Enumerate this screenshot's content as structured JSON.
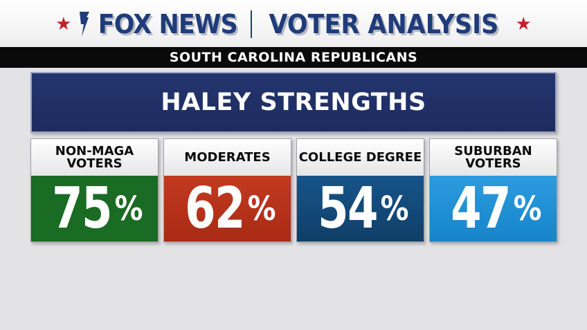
{
  "header": {
    "brand": "FOX NEWS",
    "title": "VOTER ANALYSIS",
    "star_icon": "star-icon",
    "logo_icon": "fox-torch-icon"
  },
  "subheader": "SOUTH CAROLINA REPUBLICANS",
  "banner": "HALEY STRENGTHS",
  "colors": {
    "brand_blue": "#1f3c7a",
    "star_red": "#c3202b",
    "banner_navy": "#24356f"
  },
  "cards": [
    {
      "label_line1": "NON-MAGA",
      "label_line2": "VOTERS",
      "value": "75",
      "unit": "%",
      "color": "#1a6b23"
    },
    {
      "label_line1": "MODERATES",
      "label_line2": "",
      "value": "62",
      "unit": "%",
      "color": "#b8321b"
    },
    {
      "label_line1": "COLLEGE DEGREE",
      "label_line2": "",
      "value": "54",
      "unit": "%",
      "color": "#134b79"
    },
    {
      "label_line1": "SUBURBAN",
      "label_line2": "VOTERS",
      "value": "47",
      "unit": "%",
      "color": "#1e8fd2"
    }
  ]
}
